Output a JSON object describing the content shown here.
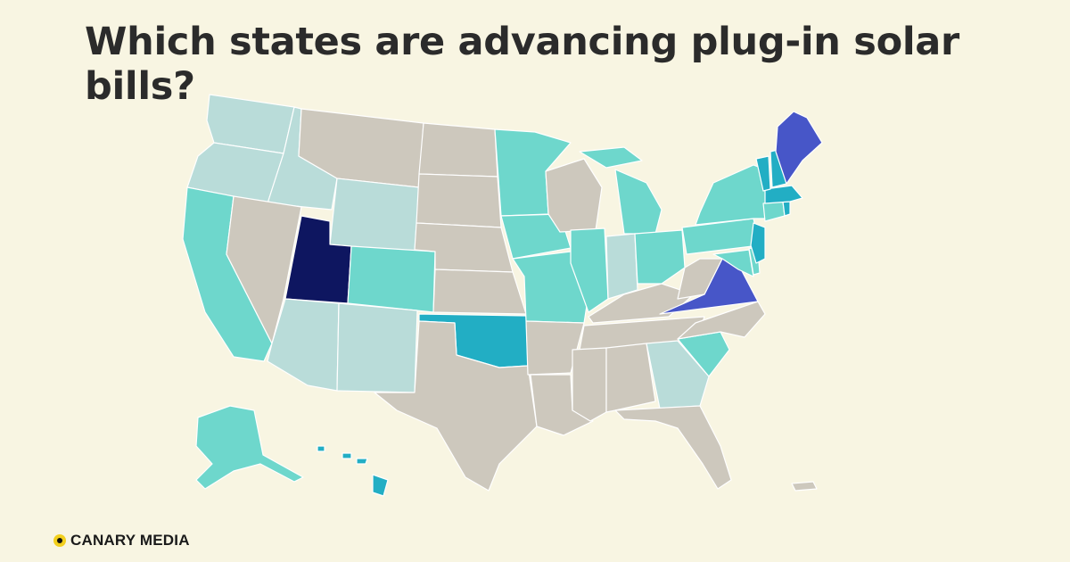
{
  "title": "Which states are advancing plug-in solar bills?",
  "brand": {
    "name": "CANARY MEDIA",
    "mark_icon": "canary-dot-icon",
    "mark_color": "#f2cf1d"
  },
  "colors": {
    "background": "#f8f5e2",
    "no_activity": "#cdc8bd",
    "level_light": "#b9dcd9",
    "level_medium": "#6ed7cc",
    "level_strong": "#22aec4",
    "level_very_strong": "#4756c8",
    "level_max": "#0e1660"
  },
  "states": [
    {
      "code": "WA",
      "level": "level_light"
    },
    {
      "code": "OR",
      "level": "level_light"
    },
    {
      "code": "CA",
      "level": "level_medium"
    },
    {
      "code": "ID",
      "level": "level_light"
    },
    {
      "code": "NV",
      "level": "no_activity"
    },
    {
      "code": "MT",
      "level": "no_activity"
    },
    {
      "code": "WY",
      "level": "level_light"
    },
    {
      "code": "UT",
      "level": "level_max"
    },
    {
      "code": "CO",
      "level": "level_medium"
    },
    {
      "code": "AZ",
      "level": "level_light"
    },
    {
      "code": "NM",
      "level": "level_light"
    },
    {
      "code": "ND",
      "level": "no_activity"
    },
    {
      "code": "SD",
      "level": "no_activity"
    },
    {
      "code": "NE",
      "level": "no_activity"
    },
    {
      "code": "KS",
      "level": "no_activity"
    },
    {
      "code": "OK",
      "level": "level_strong"
    },
    {
      "code": "TX",
      "level": "no_activity"
    },
    {
      "code": "MN",
      "level": "level_medium"
    },
    {
      "code": "IA",
      "level": "level_medium"
    },
    {
      "code": "MO",
      "level": "level_medium"
    },
    {
      "code": "AR",
      "level": "no_activity"
    },
    {
      "code": "LA",
      "level": "no_activity"
    },
    {
      "code": "WI",
      "level": "no_activity"
    },
    {
      "code": "IL",
      "level": "level_medium"
    },
    {
      "code": "MI",
      "level": "level_medium"
    },
    {
      "code": "IN",
      "level": "level_light"
    },
    {
      "code": "OH",
      "level": "level_medium"
    },
    {
      "code": "KY",
      "level": "no_activity"
    },
    {
      "code": "TN",
      "level": "no_activity"
    },
    {
      "code": "MS",
      "level": "no_activity"
    },
    {
      "code": "AL",
      "level": "no_activity"
    },
    {
      "code": "GA",
      "level": "level_light"
    },
    {
      "code": "FL",
      "level": "no_activity"
    },
    {
      "code": "SC",
      "level": "level_medium"
    },
    {
      "code": "NC",
      "level": "no_activity"
    },
    {
      "code": "VA",
      "level": "level_very_strong"
    },
    {
      "code": "WV",
      "level": "no_activity"
    },
    {
      "code": "PA",
      "level": "level_medium"
    },
    {
      "code": "NY",
      "level": "level_medium"
    },
    {
      "code": "MD",
      "level": "level_medium"
    },
    {
      "code": "DE",
      "level": "level_medium"
    },
    {
      "code": "NJ",
      "level": "level_strong"
    },
    {
      "code": "CT",
      "level": "level_medium"
    },
    {
      "code": "RI",
      "level": "level_strong"
    },
    {
      "code": "MA",
      "level": "level_strong"
    },
    {
      "code": "VT",
      "level": "level_strong"
    },
    {
      "code": "NH",
      "level": "level_strong"
    },
    {
      "code": "ME",
      "level": "level_very_strong"
    },
    {
      "code": "AK",
      "level": "level_medium"
    },
    {
      "code": "HI",
      "level": "level_strong"
    },
    {
      "code": "PR",
      "level": "no_activity"
    }
  ]
}
